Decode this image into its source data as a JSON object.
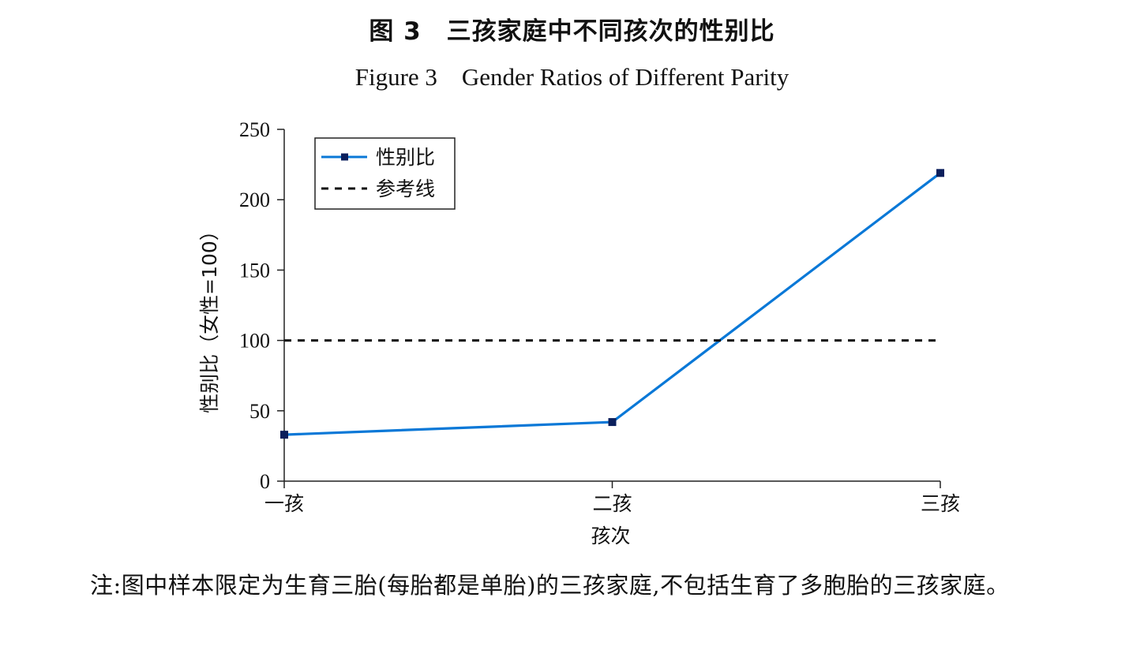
{
  "figure": {
    "title_cn": "图 3　三孩家庭中不同孩次的性别比",
    "title_en": "Figure 3　Gender Ratios of Different Parity",
    "note": "注:图中样本限定为生育三胎(每胎都是单胎)的三孩家庭,不包括生育了多胞胎的三孩家庭。"
  },
  "chart_data": {
    "type": "line",
    "title": "",
    "xlabel": "孩次",
    "ylabel": "性别比（女性=100）",
    "categories": [
      "一孩",
      "二孩",
      "三孩"
    ],
    "ylim": [
      0,
      250
    ],
    "yticks": [
      0,
      50,
      100,
      150,
      200,
      250
    ],
    "grid": false,
    "legend_position": "top-left",
    "series": [
      {
        "name": "性别比",
        "values": [
          33,
          42,
          219
        ],
        "color": "#0a78d7",
        "style": "solid",
        "marker": "square"
      },
      {
        "name": "参考线",
        "values": [
          100,
          100,
          100
        ],
        "color": "#111111",
        "style": "dashed",
        "marker": "none"
      }
    ]
  }
}
